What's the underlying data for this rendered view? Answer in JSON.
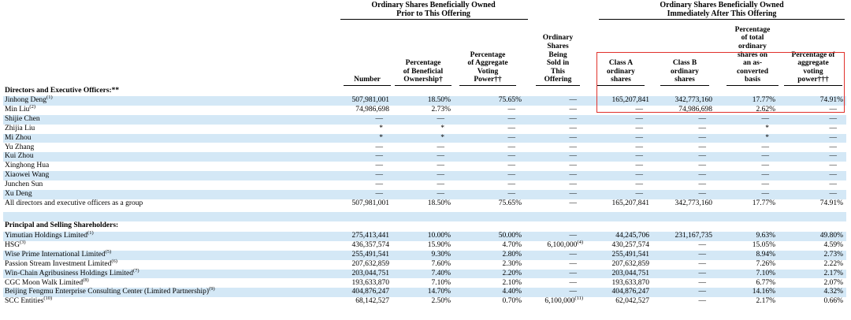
{
  "group_headers": {
    "prior": [
      "Ordinary Shares Beneficially Owned",
      "Prior to This Offering"
    ],
    "after": [
      "Ordinary Shares Beneficially Owned",
      "Immediately After This Offering"
    ]
  },
  "columns": [
    {
      "key": "number",
      "lines": [
        "Number"
      ]
    },
    {
      "key": "pct_beneficial",
      "lines": [
        "Percentage",
        "of Beneficial",
        "Ownership†"
      ]
    },
    {
      "key": "pct_voting",
      "lines": [
        "Percentage",
        "of Aggregate",
        "Voting",
        "Power††"
      ]
    },
    {
      "key": "sold",
      "lines": [
        "Ordinary",
        "Shares",
        "Being",
        "Sold in",
        "This",
        "Offering"
      ]
    },
    {
      "key": "class_a",
      "lines": [
        "Class A",
        "ordinary",
        "shares"
      ]
    },
    {
      "key": "class_b",
      "lines": [
        "Class B",
        "ordinary",
        "shares"
      ]
    },
    {
      "key": "pct_total",
      "lines": [
        "Percentage",
        "of total",
        "ordinary",
        "shares on",
        "an as-",
        "converted",
        "basis"
      ]
    },
    {
      "key": "pct_aggregate",
      "lines": [
        "Percentage of",
        "aggregate",
        "voting",
        "power†††"
      ]
    }
  ],
  "sections": {
    "directors": "Directors and Executive Officers:**",
    "principal": "Principal and Selling Shareholders:"
  },
  "rows": [
    {
      "name": "Jinhong Deng",
      "note": "(1)",
      "vals": [
        "507,981,001",
        "18.50%",
        "75.65%",
        "—",
        "165,207,841",
        "342,773,160",
        "17.77%",
        "74.91%"
      ]
    },
    {
      "name": "Min Liu",
      "note": "(2)",
      "vals": [
        "74,986,698",
        "2.73%",
        "—",
        "—",
        "—",
        "74,986,698",
        "2.62%",
        "—"
      ]
    },
    {
      "name": "Shijie Chen",
      "note": "",
      "vals": [
        "—",
        "—",
        "—",
        "—",
        "—",
        "—",
        "—",
        "—"
      ]
    },
    {
      "name": "Zhijia Liu",
      "note": "",
      "vals": [
        "*",
        "*",
        "—",
        "—",
        "—",
        "—",
        "*",
        "—"
      ]
    },
    {
      "name": "Mi Zhou",
      "note": "",
      "vals": [
        "*",
        "*",
        "—",
        "—",
        "—",
        "—",
        "*",
        "—"
      ]
    },
    {
      "name": "Yu Zhang",
      "note": "",
      "vals": [
        "—",
        "—",
        "—",
        "—",
        "—",
        "—",
        "—",
        "—"
      ]
    },
    {
      "name": "Kui Zhou",
      "note": "",
      "vals": [
        "—",
        "—",
        "—",
        "—",
        "—",
        "—",
        "—",
        "—"
      ]
    },
    {
      "name": "Xinghong Hua",
      "note": "",
      "vals": [
        "—",
        "—",
        "—",
        "—",
        "—",
        "—",
        "—",
        "—"
      ]
    },
    {
      "name": "Xiaowei Wang",
      "note": "",
      "vals": [
        "—",
        "—",
        "—",
        "—",
        "—",
        "—",
        "—",
        "—"
      ]
    },
    {
      "name": "Junchen Sun",
      "note": "",
      "vals": [
        "—",
        "—",
        "—",
        "—",
        "—",
        "—",
        "—",
        "—"
      ]
    },
    {
      "name": "Xu Deng",
      "note": "",
      "vals": [
        "—",
        "—",
        "—",
        "—",
        "—",
        "—",
        "—",
        "—"
      ]
    },
    {
      "name": "All directors and executive officers as a group",
      "note": "",
      "vals": [
        "507,981,001",
        "18.50%",
        "75.65%",
        "—",
        "165,207,841",
        "342,773,160",
        "17.77%",
        "74.91%"
      ]
    },
    {
      "name": "Yimutian Holdings Limited",
      "note": "(1)",
      "vals": [
        "275,413,441",
        "10.00%",
        "50.00%",
        "—",
        "44,245,706",
        "231,167,735",
        "9.63%",
        "49.80%"
      ]
    },
    {
      "name": "HSG",
      "note": "(3)",
      "vals": [
        "436,357,574",
        "15.90%",
        "4.70%",
        "6,100,000",
        "430,257,574",
        "—",
        "15.05%",
        "4.59%"
      ],
      "sold_note": "(4)"
    },
    {
      "name": "Wise Prime International Limited",
      "note": "(5)",
      "vals": [
        "255,491,541",
        "9.30%",
        "2.80%",
        "—",
        "255,491,541",
        "—",
        "8.94%",
        "2.73%"
      ]
    },
    {
      "name": "Passion Stream Investment Limited",
      "note": "(6)",
      "vals": [
        "207,632,859",
        "7.60%",
        "2.30%",
        "—",
        "207,632,859",
        "—",
        "7.26%",
        "2.22%"
      ]
    },
    {
      "name": "Win-Chain Agribusiness Holdings Limited",
      "note": "(7)",
      "vals": [
        "203,044,751",
        "7.40%",
        "2.20%",
        "—",
        "203,044,751",
        "—",
        "7.10%",
        "2.17%"
      ]
    },
    {
      "name": "CGC Moon Walk Limited",
      "note": "(8)",
      "vals": [
        "193,633,870",
        "7.10%",
        "2.10%",
        "—",
        "193,633,870",
        "—",
        "6.77%",
        "2.07%"
      ]
    },
    {
      "name": "Beijing Fengmu Enterprise Consulting Center (Limited Partnership)",
      "note": "(9)",
      "vals": [
        "404,876,247",
        "14.70%",
        "4.40%",
        "—",
        "404,876,247",
        "—",
        "14.16%",
        "4.32%"
      ]
    },
    {
      "name": "SCC Entities",
      "note": "(10)",
      "vals": [
        "68,142,527",
        "2.50%",
        "0.70%",
        "6,100,000",
        "62,042,527",
        "—",
        "2.17%",
        "0.66%"
      ],
      "sold_note": "(11)"
    }
  ],
  "colors": {
    "shade": "#d4e8f6",
    "callout": "#e0312b"
  }
}
